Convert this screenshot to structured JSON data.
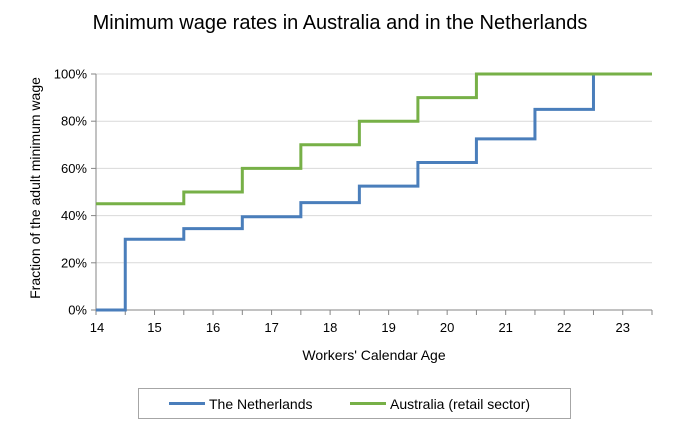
{
  "chart_data": {
    "type": "line",
    "title": "Minimum wage rates in Australia and in the Netherlands",
    "xlabel": "Workers' Calendar Age",
    "ylabel": "Fraction of the adult minimum wage",
    "xlim": [
      14,
      23.5
    ],
    "ylim": [
      0,
      1
    ],
    "x_ticks": [
      14,
      15,
      16,
      17,
      18,
      19,
      20,
      21,
      22,
      23
    ],
    "y_ticks": [
      "0%",
      "20%",
      "40%",
      "60%",
      "80%",
      "100%"
    ],
    "y_tick_values": [
      0,
      0.2,
      0.4,
      0.6,
      0.8,
      1.0
    ],
    "grid": "horizontal",
    "legend_position": "bottom",
    "series": [
      {
        "name": "The Netherlands",
        "color": "#4a7ebb",
        "step_x": [
          14,
          14.5,
          15.5,
          16.5,
          17.5,
          18.5,
          19.5,
          20.5,
          21.5,
          22.5
        ],
        "step_y": [
          0,
          0.3,
          0.345,
          0.395,
          0.455,
          0.525,
          0.625,
          0.725,
          0.85,
          1.0
        ]
      },
      {
        "name": "Australia (retail sector)",
        "color": "#77b047",
        "step_x": [
          14,
          15.5,
          16.5,
          17.5,
          18.5,
          19.5,
          20.5
        ],
        "step_y": [
          0.45,
          0.5,
          0.6,
          0.7,
          0.8,
          0.9,
          1.0
        ]
      }
    ]
  }
}
